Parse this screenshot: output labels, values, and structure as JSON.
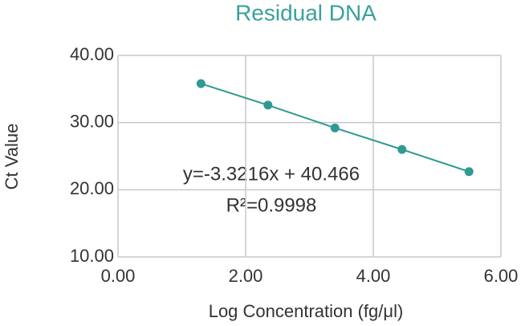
{
  "chart_data": {
    "type": "scatter",
    "title": "Residual DNA",
    "title_color": "#3aa19b",
    "x_label": "Log Concentration (fg/μl)",
    "y_label": "Ct Value",
    "annotations": [
      "y=-3.3216x + 40.466",
      "R²=0.9998"
    ],
    "series": [
      {
        "color": "#2f9a94",
        "x": [
          1.3,
          2.35,
          3.4,
          4.45,
          5.5
        ],
        "values": [
          35.8,
          32.6,
          29.2,
          26.0,
          22.7
        ]
      }
    ],
    "xlim": [
      0,
      6
    ],
    "ylim": [
      10,
      40
    ],
    "xticks": [
      {
        "value": 0,
        "label": "0.00"
      },
      {
        "value": 2,
        "label": "2.00"
      },
      {
        "value": 4,
        "label": "4.00"
      },
      {
        "value": 6,
        "label": "6.00"
      }
    ],
    "yticks": [
      {
        "value": 10,
        "label": "10.00"
      },
      {
        "value": 20,
        "label": "20.00"
      },
      {
        "value": 30,
        "label": "30.00"
      },
      {
        "value": 40,
        "label": "40.00"
      }
    ],
    "grid": true
  }
}
